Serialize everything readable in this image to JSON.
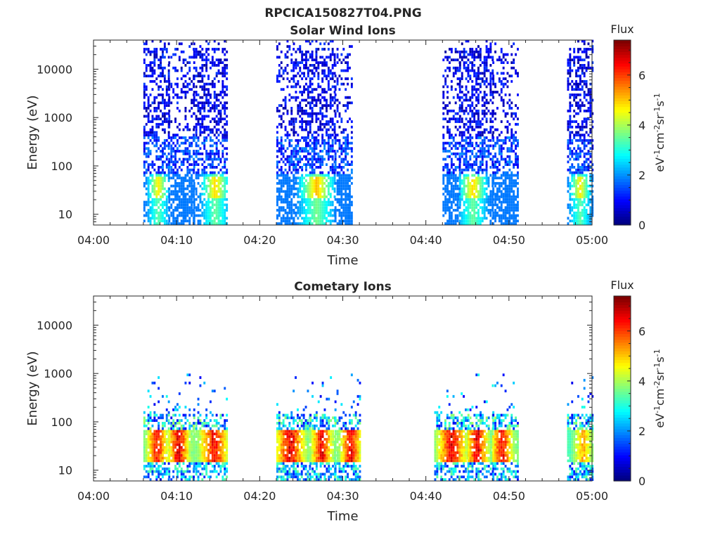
{
  "figure": {
    "title": "RPCICA150827T04.PNG"
  },
  "colorbar": {
    "title": "Flux",
    "label": "eV⁻¹cm⁻²sr⁻¹s⁻¹",
    "range": [
      0,
      7.4
    ],
    "ticks": [
      "0",
      "2",
      "4",
      "6"
    ],
    "colormap": "jet"
  },
  "chart_data": [
    {
      "type": "heatmap",
      "title": "Solar Wind Ions",
      "xlabel": "Time",
      "ylabel": "Energy (eV)",
      "x_range": [
        "04:00",
        "05:00"
      ],
      "x_ticks": [
        "04:00",
        "04:10",
        "04:20",
        "04:30",
        "04:40",
        "04:50",
        "05:00"
      ],
      "y_scale": "log",
      "ylim": [
        6,
        40000
      ],
      "y_ticks": [
        "10",
        "100",
        "1000",
        "10000"
      ],
      "grid": false,
      "bursts": [
        {
          "start": "04:06",
          "end": "04:09",
          "flux_max": 4.8
        },
        {
          "start": "04:09",
          "end": "04:12",
          "flux_max": 1.8
        },
        {
          "start": "04:12",
          "end": "04:16",
          "flux_max": 5.0
        },
        {
          "start": "04:22",
          "end": "04:24",
          "flux_max": 1.8
        },
        {
          "start": "04:24",
          "end": "04:29",
          "flux_max": 5.2
        },
        {
          "start": "04:29",
          "end": "04:31",
          "flux_max": 1.8
        },
        {
          "start": "04:42",
          "end": "04:44",
          "flux_max": 1.8
        },
        {
          "start": "04:44",
          "end": "04:48",
          "flux_max": 5.0
        },
        {
          "start": "04:48",
          "end": "04:51",
          "flux_max": 1.8
        },
        {
          "start": "04:57",
          "end": "05:00",
          "flux_max": 4.8
        }
      ]
    },
    {
      "type": "heatmap",
      "title": "Cometary Ions",
      "xlabel": "Time",
      "ylabel": "Energy (eV)",
      "x_range": [
        "04:00",
        "05:00"
      ],
      "x_ticks": [
        "04:00",
        "04:10",
        "04:20",
        "04:30",
        "04:40",
        "04:50",
        "05:00"
      ],
      "y_scale": "log",
      "ylim": [
        6,
        40000
      ],
      "y_ticks": [
        "10",
        "100",
        "1000",
        "10000"
      ],
      "grid": false,
      "bursts": [
        {
          "start": "04:06",
          "end": "04:09",
          "flux_max": 7.0
        },
        {
          "start": "04:09",
          "end": "04:12",
          "flux_max": 7.4
        },
        {
          "start": "04:12",
          "end": "04:16",
          "flux_max": 7.2
        },
        {
          "start": "04:22",
          "end": "04:26",
          "flux_max": 7.4
        },
        {
          "start": "04:26",
          "end": "04:29",
          "flux_max": 7.2
        },
        {
          "start": "04:29",
          "end": "04:32",
          "flux_max": 7.2
        },
        {
          "start": "04:41",
          "end": "04:45",
          "flux_max": 7.4
        },
        {
          "start": "04:45",
          "end": "04:48",
          "flux_max": 7.4
        },
        {
          "start": "04:48",
          "end": "04:51",
          "flux_max": 7.2
        },
        {
          "start": "04:57",
          "end": "05:00",
          "flux_max": 5.6
        }
      ]
    }
  ]
}
